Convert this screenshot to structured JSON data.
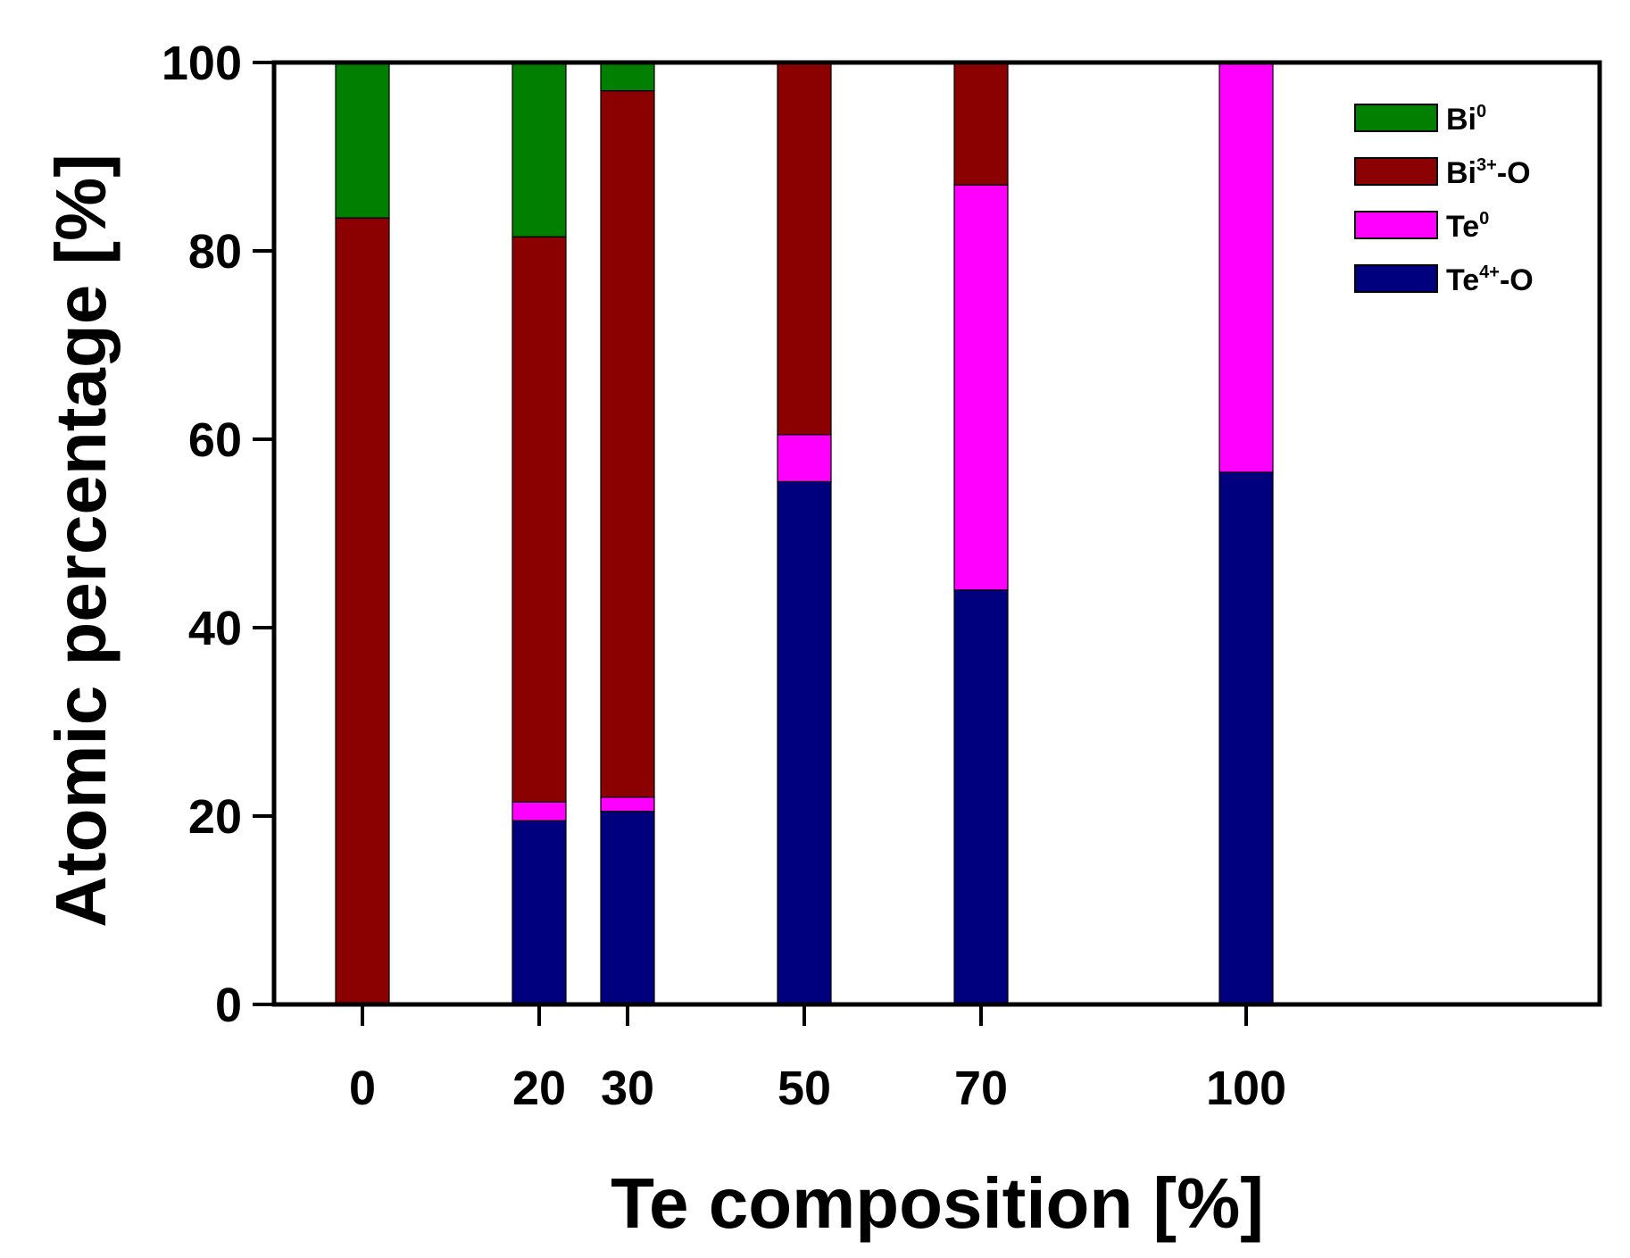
{
  "chart_data": {
    "type": "bar",
    "stacked": true,
    "x": [
      0,
      20,
      30,
      50,
      70,
      100
    ],
    "categories": [
      "0",
      "20",
      "30",
      "50",
      "70",
      "100"
    ],
    "xlim": [
      -10,
      140
    ],
    "ylim": [
      0,
      100
    ],
    "yticks": [
      0,
      20,
      40,
      60,
      80,
      100
    ],
    "xlabel": "Te composition [%]",
    "ylabel": "Atomic percentage [%]",
    "grid": false,
    "legend_position": "top-right",
    "series": [
      {
        "key": "te4",
        "base": "Te",
        "sup": "4+",
        "suffix": "-O",
        "color": "#00007f",
        "values": [
          0,
          19.5,
          20.5,
          55.5,
          44,
          56.5
        ]
      },
      {
        "key": "te0",
        "base": "Te",
        "sup": "0",
        "suffix": "",
        "color": "#ff00ff",
        "values": [
          0,
          2,
          1.5,
          5,
          43,
          43.5
        ]
      },
      {
        "key": "bi3",
        "base": "Bi",
        "sup": "3+",
        "suffix": "-O",
        "color": "#8b0000",
        "values": [
          83.5,
          60,
          75,
          39.5,
          13,
          0
        ]
      },
      {
        "key": "bi0",
        "base": "Bi",
        "sup": "0",
        "suffix": "",
        "color": "#007f00",
        "values": [
          16.5,
          18.5,
          3,
          0,
          0,
          0
        ]
      }
    ],
    "legend_order": [
      "bi0",
      "bi3",
      "te0",
      "te4"
    ]
  }
}
